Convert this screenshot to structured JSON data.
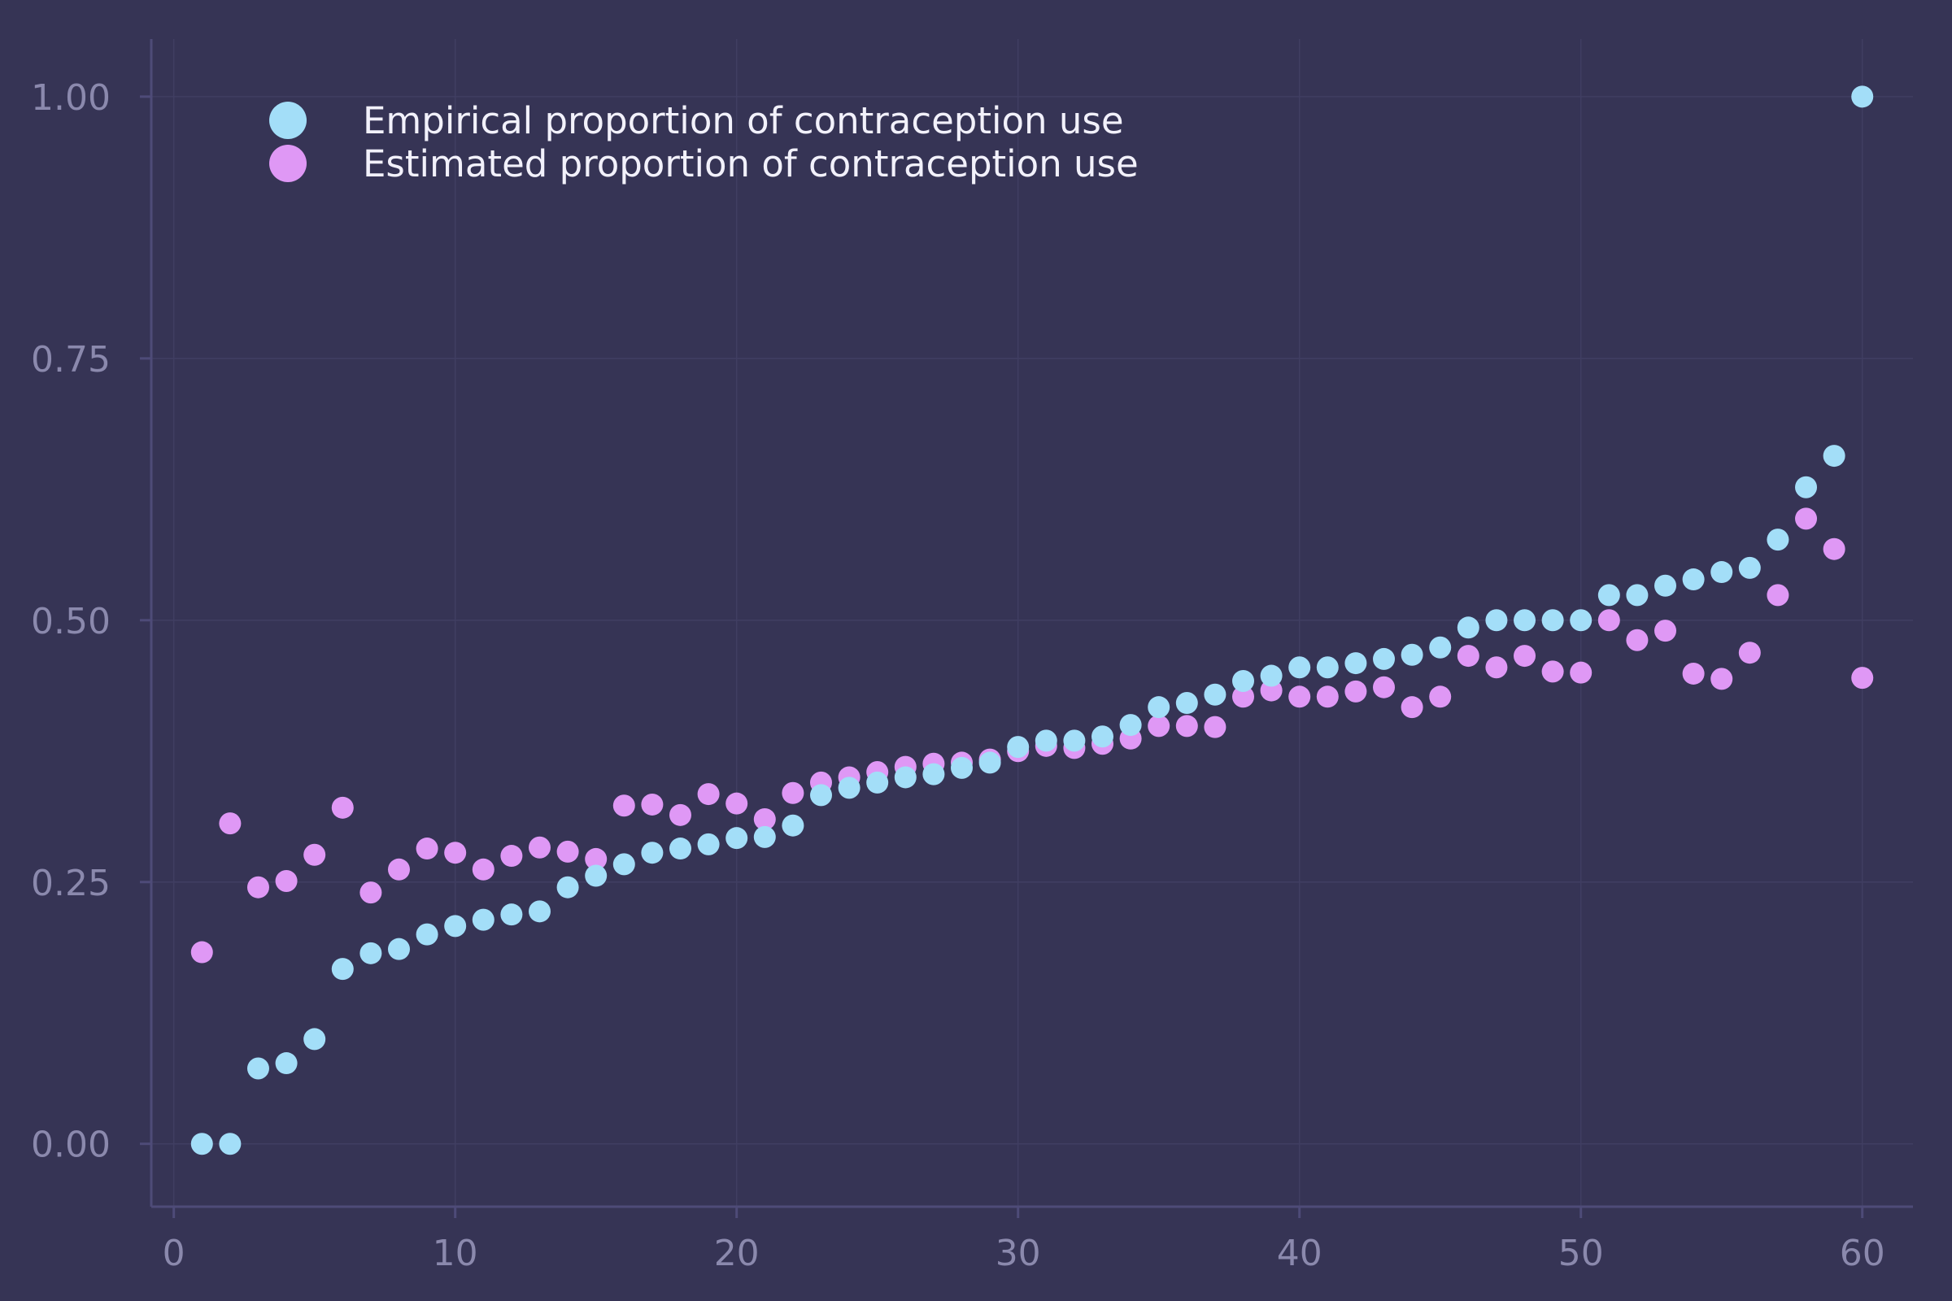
{
  "chart_data": {
    "type": "scatter",
    "xlim": [
      -0.8,
      61.8
    ],
    "ylim": [
      -0.06,
      1.055
    ],
    "xticks": [
      0,
      10,
      20,
      30,
      40,
      50,
      60
    ],
    "xtick_labels": [
      "0",
      "10",
      "20",
      "30",
      "40",
      "50",
      "60"
    ],
    "yticks": [
      0,
      0.25,
      0.5,
      0.75,
      1.0
    ],
    "ytick_labels": [
      "0.00",
      "0.25",
      "0.50",
      "0.75",
      "1.00"
    ],
    "grid": true,
    "legend_position": "top-left",
    "colors": {
      "background": "#363455",
      "axis": "#4e4b78",
      "grid": "#403e62",
      "empirical": "#a3def8",
      "estimated": "#df98f5"
    },
    "series": [
      {
        "name": "Empirical proportion of contraception use",
        "x": [
          1,
          2,
          3,
          4,
          5,
          6,
          7,
          8,
          9,
          10,
          11,
          12,
          13,
          14,
          15,
          16,
          17,
          18,
          19,
          20,
          21,
          22,
          23,
          24,
          25,
          26,
          27,
          28,
          29,
          30,
          31,
          32,
          33,
          34,
          35,
          36,
          37,
          38,
          39,
          40,
          41,
          42,
          43,
          44,
          45,
          46,
          47,
          48,
          49,
          50,
          51,
          52,
          53,
          54,
          55,
          56,
          57,
          58,
          59,
          60
        ],
        "y": [
          0.0,
          0.0,
          0.072,
          0.077,
          0.1,
          0.167,
          0.182,
          0.186,
          0.2,
          0.208,
          0.214,
          0.219,
          0.222,
          0.245,
          0.256,
          0.267,
          0.278,
          0.282,
          0.286,
          0.292,
          0.293,
          0.304,
          0.333,
          0.34,
          0.345,
          0.35,
          0.353,
          0.359,
          0.364,
          0.379,
          0.385,
          0.385,
          0.389,
          0.4,
          0.417,
          0.421,
          0.429,
          0.442,
          0.447,
          0.455,
          0.455,
          0.459,
          0.463,
          0.467,
          0.474,
          0.493,
          0.5,
          0.5,
          0.5,
          0.5,
          0.524,
          0.524,
          0.533,
          0.539,
          0.546,
          0.55,
          0.577,
          0.627,
          0.657,
          1.0
        ]
      },
      {
        "name": "Estimated proportion of contraception use",
        "x": [
          1,
          2,
          3,
          4,
          5,
          6,
          7,
          8,
          9,
          10,
          11,
          12,
          13,
          14,
          15,
          16,
          17,
          18,
          19,
          20,
          21,
          22,
          23,
          24,
          25,
          26,
          27,
          28,
          29,
          30,
          31,
          32,
          33,
          34,
          35,
          36,
          37,
          38,
          39,
          40,
          41,
          42,
          43,
          44,
          45,
          46,
          47,
          48,
          49,
          50,
          51,
          52,
          53,
          54,
          55,
          56,
          57,
          58,
          59,
          60
        ],
        "y": [
          0.183,
          0.306,
          0.245,
          0.251,
          0.276,
          0.321,
          0.24,
          0.262,
          0.282,
          0.278,
          0.262,
          0.275,
          0.283,
          0.279,
          0.272,
          0.323,
          0.324,
          0.314,
          0.334,
          0.325,
          0.31,
          0.335,
          0.345,
          0.35,
          0.355,
          0.36,
          0.363,
          0.364,
          0.367,
          0.375,
          0.38,
          0.378,
          0.382,
          0.387,
          0.399,
          0.399,
          0.398,
          0.427,
          0.433,
          0.427,
          0.427,
          0.432,
          0.436,
          0.417,
          0.427,
          0.466,
          0.455,
          0.466,
          0.451,
          0.45,
          0.5,
          0.481,
          0.49,
          0.449,
          0.444,
          0.469,
          0.524,
          0.597,
          0.568,
          0.445
        ]
      }
    ]
  }
}
